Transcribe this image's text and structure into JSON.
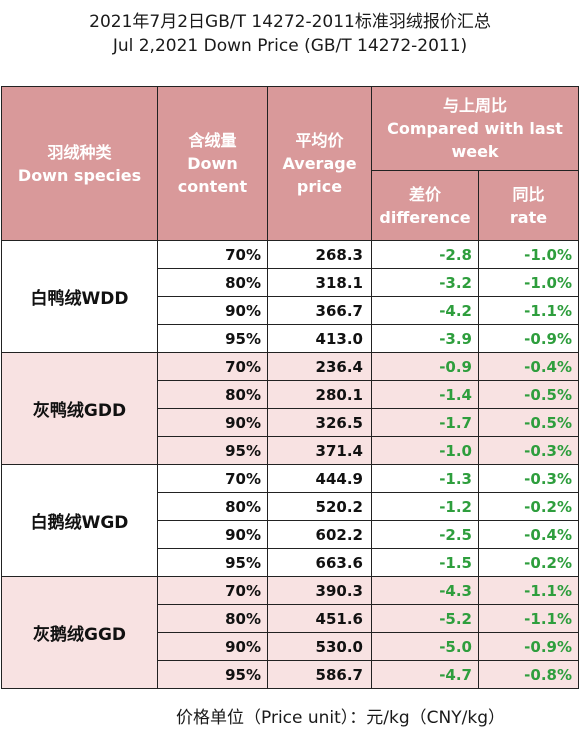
{
  "title_cn": "2021年7月2日GB/T 14272-2011标准羽绒报价汇总",
  "title_en": "Jul 2,2021 Down Price (GB/T 14272-2011)",
  "headers": {
    "species_cn": "羽绒种类",
    "species_en": "Down species",
    "content_cn": "含绒量",
    "content_en1": "Down",
    "content_en2": "content",
    "avg_cn": "平均价",
    "avg_en1": "Average",
    "avg_en2": "price",
    "compare_cn": "与上周比",
    "compare_en1": "Compared with last",
    "compare_en2": "week",
    "diff_cn": "差价",
    "diff_en": "difference",
    "rate_cn": "同比",
    "rate_en": "rate"
  },
  "groups": [
    {
      "species": "白鸭绒WDD",
      "rows": [
        {
          "content": "70%",
          "avg": "268.3",
          "diff": "-2.8",
          "rate": "-1.0%"
        },
        {
          "content": "80%",
          "avg": "318.1",
          "diff": "-3.2",
          "rate": "-1.0%"
        },
        {
          "content": "90%",
          "avg": "366.7",
          "diff": "-4.2",
          "rate": "-1.1%"
        },
        {
          "content": "95%",
          "avg": "413.0",
          "diff": "-3.9",
          "rate": "-0.9%"
        }
      ]
    },
    {
      "species": "灰鸭绒GDD",
      "rows": [
        {
          "content": "70%",
          "avg": "236.4",
          "diff": "-0.9",
          "rate": "-0.4%"
        },
        {
          "content": "80%",
          "avg": "280.1",
          "diff": "-1.4",
          "rate": "-0.5%"
        },
        {
          "content": "90%",
          "avg": "326.5",
          "diff": "-1.7",
          "rate": "-0.5%"
        },
        {
          "content": "95%",
          "avg": "371.4",
          "diff": "-1.0",
          "rate": "-0.3%"
        }
      ]
    },
    {
      "species": "白鹅绒WGD",
      "rows": [
        {
          "content": "70%",
          "avg": "444.9",
          "diff": "-1.3",
          "rate": "-0.3%"
        },
        {
          "content": "80%",
          "avg": "520.2",
          "diff": "-1.2",
          "rate": "-0.2%"
        },
        {
          "content": "90%",
          "avg": "602.2",
          "diff": "-2.5",
          "rate": "-0.4%"
        },
        {
          "content": "95%",
          "avg": "663.6",
          "diff": "-1.5",
          "rate": "-0.2%"
        }
      ]
    },
    {
      "species": "灰鹅绒GGD",
      "rows": [
        {
          "content": "70%",
          "avg": "390.3",
          "diff": "-4.3",
          "rate": "-1.1%"
        },
        {
          "content": "80%",
          "avg": "451.6",
          "diff": "-5.2",
          "rate": "-1.1%"
        },
        {
          "content": "90%",
          "avg": "530.0",
          "diff": "-5.0",
          "rate": "-0.9%"
        },
        {
          "content": "95%",
          "avg": "586.7",
          "diff": "-4.7",
          "rate": "-0.8%"
        }
      ]
    }
  ],
  "footer": "价格单位（Price unit）：元/kg（CNY/kg）",
  "colors": {
    "header_bg": "#d9999a",
    "header_text": "#ffffff",
    "stripe_pink": "#f8e2e2",
    "negative_green": "#2e9e3d"
  }
}
